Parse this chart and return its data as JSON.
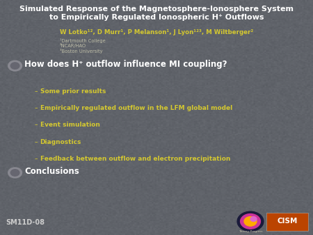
{
  "title_line1": "Simulated Response of the Magnetosphere-Ionosphere System",
  "title_line2": "to Empirically Regulated Ionospheric H⁺ Outflows",
  "authors": "W Lotko¹², D Murr¹, P Melanson¹, J Lyon¹²³, M Wiltberger²",
  "affil1": "¹Dartmouth College",
  "affil2": "²NCAR/HAO",
  "affil3": "³Boston University",
  "bullet1": "How does H⁺ outflow influence MI coupling?",
  "sub1": "Some prior results",
  "sub2": "Empirically regulated outflow in the LFM global model",
  "sub3": "Event simulation",
  "sub4": "Diagnostics",
  "sub5": "Feedback between outflow and electron precipitation",
  "bullet2": "Conclusions",
  "slide_id": "SM11D-08",
  "bg_color": "#595d65",
  "title_color": "#ffffff",
  "authors_color": "#d4c830",
  "affil_color": "#c0bfa8",
  "bullet_color": "#ffffff",
  "sub_color": "#d4c830",
  "slide_id_color": "#cccccc"
}
